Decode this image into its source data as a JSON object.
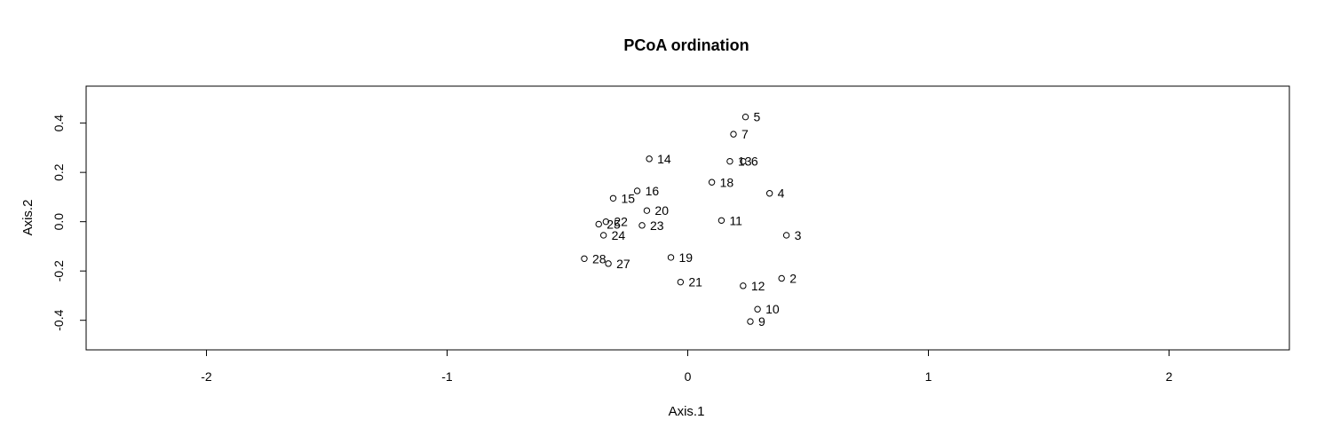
{
  "chart_data": {
    "type": "scatter",
    "title": "PCoA ordination",
    "xlabel": "Axis.1",
    "ylabel": "Axis.2",
    "xlim": [
      -2.5,
      2.5
    ],
    "ylim": [
      -0.52,
      0.55
    ],
    "xticks": [
      -2,
      -1,
      0,
      1,
      2
    ],
    "xtick_labels": [
      "-2",
      "-1",
      "0",
      "1",
      "2"
    ],
    "yticks": [
      -0.4,
      -0.2,
      0.0,
      0.2,
      0.4
    ],
    "ytick_labels": [
      "-0.4",
      "-0.2",
      "0.0",
      "0.2",
      "0.4"
    ],
    "grid": false,
    "points": [
      {
        "label": "2",
        "x": 0.39,
        "y": -0.23
      },
      {
        "label": "3",
        "x": 0.41,
        "y": -0.055
      },
      {
        "label": "4",
        "x": 0.34,
        "y": 0.115
      },
      {
        "label": "5",
        "x": 0.24,
        "y": 0.425
      },
      {
        "label": "7",
        "x": 0.19,
        "y": 0.355
      },
      {
        "label": "9",
        "x": 0.26,
        "y": -0.405
      },
      {
        "label": "10",
        "x": 0.29,
        "y": -0.355
      },
      {
        "label": "11",
        "x": 0.14,
        "y": 0.005
      },
      {
        "label": "12",
        "x": 0.23,
        "y": -0.26
      },
      {
        "label": "13",
        "x": 0.175,
        "y": 0.245
      },
      {
        "label": "6",
        "x": 0.23,
        "y": 0.245
      },
      {
        "label": "14",
        "x": -0.16,
        "y": 0.255
      },
      {
        "label": "15",
        "x": -0.31,
        "y": 0.095
      },
      {
        "label": "16",
        "x": -0.21,
        "y": 0.125
      },
      {
        "label": "18",
        "x": 0.1,
        "y": 0.16
      },
      {
        "label": "19",
        "x": -0.07,
        "y": -0.145
      },
      {
        "label": "20",
        "x": -0.17,
        "y": 0.045
      },
      {
        "label": "21",
        "x": -0.03,
        "y": -0.245
      },
      {
        "label": "22",
        "x": -0.34,
        "y": 0.0
      },
      {
        "label": "23",
        "x": -0.19,
        "y": -0.015
      },
      {
        "label": "24",
        "x": -0.35,
        "y": -0.055
      },
      {
        "label": "25",
        "x": -0.37,
        "y": -0.01
      },
      {
        "label": "27",
        "x": -0.33,
        "y": -0.17
      },
      {
        "label": "28",
        "x": -0.43,
        "y": -0.15
      }
    ]
  }
}
